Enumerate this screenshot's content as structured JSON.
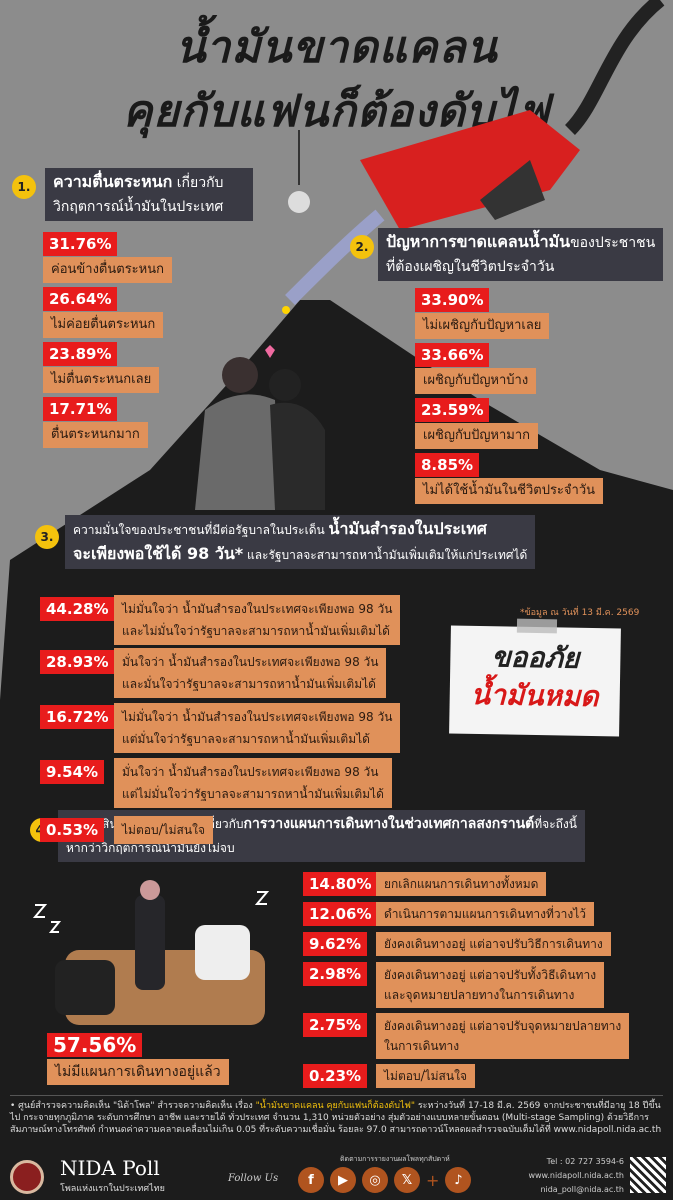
{
  "title": {
    "line1": "น้ำมันขาดแคลน",
    "line2": "คุยกับแฟนก็ต้องดับไฟ"
  },
  "colors": {
    "pct_bg": "#e81c1c",
    "label_bg": "#e0915a",
    "header_bg": "#3a3a44",
    "badge": "#f4c20d",
    "background_top": "#8c8c8c",
    "background_dark": "#1c1c1c"
  },
  "q1": {
    "num": "1.",
    "title_bold": "ความตื่นตระหนก",
    "title_rest": " เกี่ยวกับ",
    "title_line2": "วิกฤตการณ์น้ำมันในประเทศ",
    "items": [
      {
        "pct": "31.76%",
        "label": "ค่อนข้างตื่นตระหนก"
      },
      {
        "pct": "26.64%",
        "label": "ไม่ค่อยตื่นตระหนก"
      },
      {
        "pct": "23.89%",
        "label": "ไม่ตื่นตระหนกเลย"
      },
      {
        "pct": "17.71%",
        "label": "ตื่นตระหนกมาก"
      }
    ]
  },
  "q2": {
    "num": "2.",
    "title_bold": "ปัญหาการขาดแคลนน้ำมัน",
    "title_rest": "ของประชาชน",
    "title_line2": "ที่ต้องเผชิญในชีวิตประจำวัน",
    "items": [
      {
        "pct": "33.90%",
        "label": "ไม่เผชิญกับปัญหาเลย"
      },
      {
        "pct": "33.66%",
        "label": "เผชิญกับปัญหาบ้าง"
      },
      {
        "pct": "23.59%",
        "label": "เผชิญกับปัญหามาก"
      },
      {
        "pct": "8.85%",
        "label": "ไม่ได้ใช้น้ำมันในชีวิตประจำวัน"
      }
    ]
  },
  "q3": {
    "num": "3.",
    "title_part1": "ความมั่นใจของประชาชนที่มีต่อรัฐบาลในประเด็น ",
    "title_bold1": "น้ำมันสำรองในประเทศ",
    "title_bold2": "จะเพียงพอใช้ได้ 98 วัน*",
    "title_part2": " และรัฐบาลจะสามารถหาน้ำมันเพิ่มเติมให้แก่ประเทศได้",
    "note": "*ข้อมูล ณ วันที่ 13 มี.ค. 2569",
    "items": [
      {
        "pct": "44.28%",
        "line1": "ไม่มั่นใจว่า น้ำมันสำรองในประเทศจะเพียงพอ 98 วัน",
        "line2": "และไม่มั่นใจว่ารัฐบาลจะสามารถหาน้ำมันเพิ่มเติมได้"
      },
      {
        "pct": "28.93%",
        "line1": "มั่นใจว่า น้ำมันสำรองในประเทศจะเพียงพอ 98 วัน",
        "line2": "และมั่นใจว่ารัฐบาลจะสามารถหาน้ำมันเพิ่มเติมได้"
      },
      {
        "pct": "16.72%",
        "line1": "ไม่มั่นใจว่า น้ำมันสำรองในประเทศจะเพียงพอ 98 วัน",
        "line2": "แต่มั่นใจว่ารัฐบาลจะสามารถหาน้ำมันเพิ่มเติมได้"
      },
      {
        "pct": "9.54%",
        "line1": "มั่นใจว่า น้ำมันสำรองในประเทศจะเพียงพอ 98 วัน",
        "line2": "แต่ไม่มั่นใจว่ารัฐบาลจะสามารถหาน้ำมันเพิ่มเติมได้"
      },
      {
        "pct": "0.53%",
        "line1": "ไม่ตอบ/ไม่สนใจ",
        "line2": ""
      }
    ]
  },
  "sticky": {
    "line1": "ขออภัย",
    "line2": "น้ำมันหมด"
  },
  "q4": {
    "num": "4.",
    "title_part1": "การตัดสินใจของประชาชนเกี่ยวกับ",
    "title_bold": "การวางแผนการเดินทางในช่วงเทศกาลสงกรานต์",
    "title_part2": "ที่จะถึงนี้",
    "title_line2": "หากว่าวิกฤตการณ์น้ำมันยังไม่จบ",
    "main": {
      "pct": "57.56%",
      "label": "ไม่มีแผนการเดินทางอยู่แล้ว"
    },
    "items": [
      {
        "pct": "14.80%",
        "line1": "ยกเลิกแผนการเดินทางทั้งหมด",
        "line2": ""
      },
      {
        "pct": "12.06%",
        "line1": "ดำเนินการตามแผนการเดินทางที่วางไว้",
        "line2": ""
      },
      {
        "pct": "9.62%",
        "line1": "ยังคงเดินทางอยู่ แต่อาจปรับวิธีการเดินทาง",
        "line2": ""
      },
      {
        "pct": "2.98%",
        "line1": "ยังคงเดินทางอยู่ แต่อาจปรับทั้งวิธีเดินทาง",
        "line2": "และจุดหมายปลายทางในการเดินทาง"
      },
      {
        "pct": "2.75%",
        "line1": "ยังคงเดินทางอยู่ แต่อาจปรับจุดหมายปลายทาง",
        "line2": "ในการเดินทาง"
      },
      {
        "pct": "0.23%",
        "line1": "ไม่ตอบ/ไม่สนใจ",
        "line2": ""
      }
    ]
  },
  "footer": {
    "text_part1": "• ศูนย์สำรวจความคิดเห็น \"นิด้าโพล\" สำรวจความคิดเห็น เรื่อง ",
    "text_highlight": "\"น้ำมันขาดแคลน คุยกับแฟนก็ต้องดับไฟ\"",
    "text_part2": " ระหว่างวันที่ 17-18 มี.ค. 2569 จากประชาชนที่มีอายุ 18 ปีขึ้นไป กระจายทุกภูมิภาค ระดับการศึกษา อาชีพ และรายได้ ทั่วประเทศ จำนวน 1,310 หน่วยตัวอย่าง สุ่มตัวอย่างแบบหลายขั้นตอน (Multi-stage Sampling) ด้วยวิธีการสัมภาษณ์ทางโทรศัพท์ กำหนดค่าความคลาดเคลื่อนไม่เกิน 0.05 ที่ระดับความเชื่อมั่น ร้อยละ 97.0 สามารถดาวน์โหลดผลสำรวจฉบับเต็มได้ที่ www.nidapoll.nida.ac.th",
    "brand": "NIDA Poll",
    "tagline": "โพลแห่งแรกในประเทศไทย",
    "follow": "Follow Us",
    "follow_caption": "ติดตามการรายงานผลโพลทุกสัปดาห์",
    "social": [
      {
        "icon": "facebook-icon",
        "glyph": "f"
      },
      {
        "icon": "youtube-icon",
        "glyph": "▶"
      },
      {
        "icon": "instagram-icon",
        "glyph": "◎"
      },
      {
        "icon": "x-icon",
        "glyph": "𝕏"
      },
      {
        "icon": "tiktok-icon",
        "glyph": "♪"
      }
    ],
    "plus": "+",
    "tel": "Tel : 02 727 3594-6",
    "web": "www.nidapoll.nida.ac.th",
    "email": "nida_poll@nida.ac.th"
  }
}
